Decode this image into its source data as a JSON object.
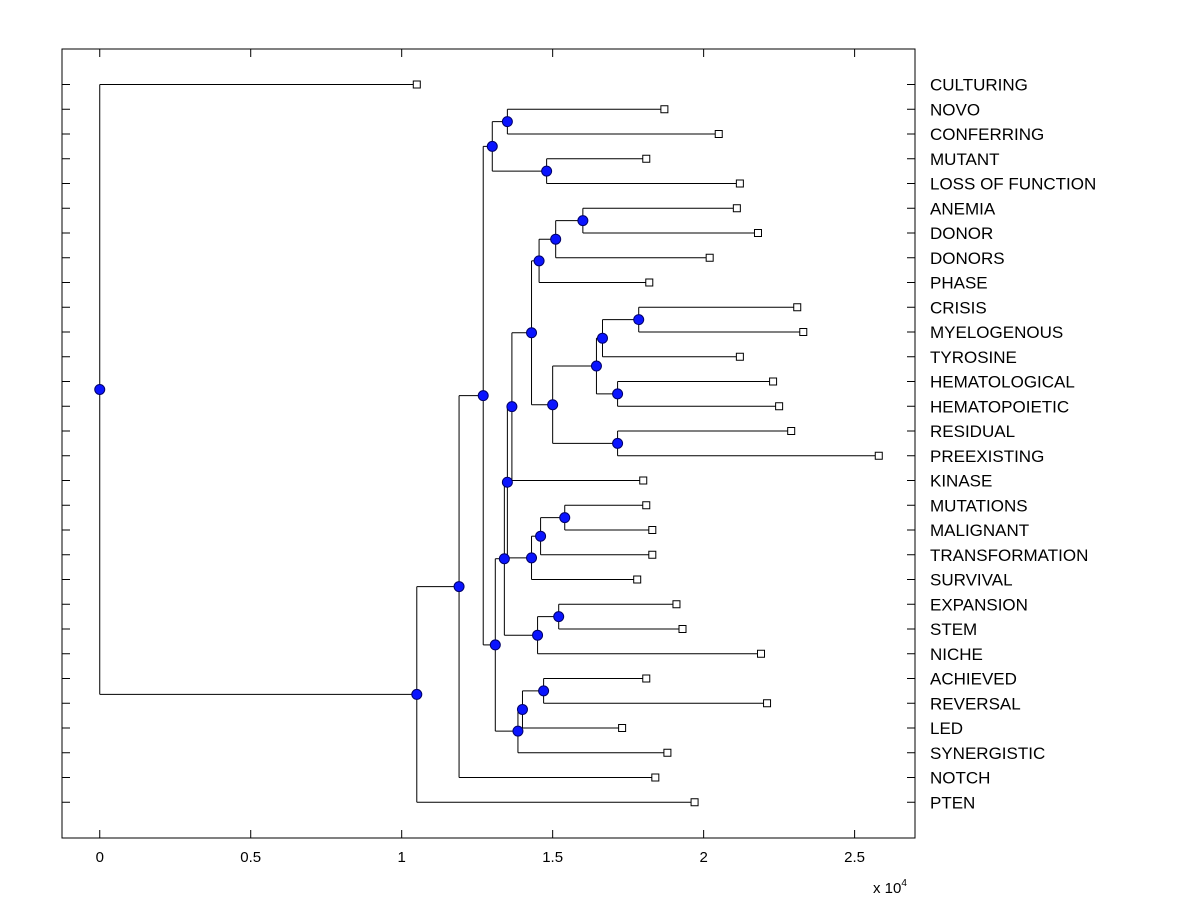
{
  "chart_data": {
    "type": "dendrogram",
    "title": "",
    "xlabel": "",
    "ylabel": "",
    "x_multiplier_label": "x 10",
    "x_multiplier_exponent": "4",
    "xlim": [
      -0.125,
      2.7
    ],
    "xticks": [
      0,
      0.5,
      1,
      1.5,
      2,
      2.5
    ],
    "xtick_labels": [
      "0",
      "0.5",
      "1",
      "1.5",
      "2",
      "2.5"
    ],
    "leaves": [
      {
        "label": "CULTURING",
        "x": 1.05
      },
      {
        "label": "NOVO",
        "x": 1.87
      },
      {
        "label": "CONFERRING",
        "x": 2.05
      },
      {
        "label": "MUTANT",
        "x": 1.81
      },
      {
        "label": "LOSS OF FUNCTION",
        "x": 2.12
      },
      {
        "label": "ANEMIA",
        "x": 2.11
      },
      {
        "label": "DONOR",
        "x": 2.18
      },
      {
        "label": "DONORS",
        "x": 2.02
      },
      {
        "label": "PHASE",
        "x": 1.82
      },
      {
        "label": "CRISIS",
        "x": 2.31
      },
      {
        "label": "MYELOGENOUS",
        "x": 2.33
      },
      {
        "label": "TYROSINE",
        "x": 2.12
      },
      {
        "label": "HEMATOLOGICAL",
        "x": 2.23
      },
      {
        "label": "HEMATOPOIETIC",
        "x": 2.25
      },
      {
        "label": "RESIDUAL",
        "x": 2.29
      },
      {
        "label": "PREEXISTING",
        "x": 2.58
      },
      {
        "label": "KINASE",
        "x": 1.8
      },
      {
        "label": "MUTATIONS",
        "x": 1.81
      },
      {
        "label": "MALIGNANT",
        "x": 1.83
      },
      {
        "label": "TRANSFORMATION",
        "x": 1.83
      },
      {
        "label": "SURVIVAL",
        "x": 1.78
      },
      {
        "label": "EXPANSION",
        "x": 1.91
      },
      {
        "label": "STEM",
        "x": 1.93
      },
      {
        "label": "NICHE",
        "x": 2.19
      },
      {
        "label": "ACHIEVED",
        "x": 1.81
      },
      {
        "label": "REVERSAL",
        "x": 2.21
      },
      {
        "label": "LED",
        "x": 1.73
      },
      {
        "label": "SYNERGISTIC",
        "x": 1.88
      },
      {
        "label": "NOTCH",
        "x": 1.84
      },
      {
        "label": "PTEN",
        "x": 1.97
      }
    ],
    "internal_nodes": [
      {
        "id": "n1",
        "x": 1.35,
        "children": [
          "NOVO",
          "CONFERRING"
        ]
      },
      {
        "id": "n2",
        "x": 1.48,
        "children": [
          "MUTANT",
          "LOSS OF FUNCTION"
        ]
      },
      {
        "id": "n3",
        "x": 1.3,
        "children": [
          "n1",
          "n2"
        ]
      },
      {
        "id": "n4",
        "x": 1.6,
        "children": [
          "ANEMIA",
          "DONOR"
        ]
      },
      {
        "id": "n5",
        "x": 1.51,
        "children": [
          "n4",
          "DONORS"
        ]
      },
      {
        "id": "n6",
        "x": 1.455,
        "children": [
          "n5",
          "PHASE"
        ]
      },
      {
        "id": "n7",
        "x": 1.785,
        "children": [
          "CRISIS",
          "MYELOGENOUS"
        ]
      },
      {
        "id": "n8",
        "x": 1.665,
        "children": [
          "n7",
          "TYROSINE"
        ]
      },
      {
        "id": "n9",
        "x": 1.715,
        "children": [
          "HEMATOLOGICAL",
          "HEMATOPOIETIC"
        ]
      },
      {
        "id": "n10",
        "x": 1.645,
        "children": [
          "n8",
          "n9"
        ]
      },
      {
        "id": "n11",
        "x": 1.715,
        "children": [
          "RESIDUAL",
          "PREEXISTING"
        ]
      },
      {
        "id": "n12",
        "x": 1.5,
        "children": [
          "n10",
          "n11"
        ]
      },
      {
        "id": "n13",
        "x": 1.43,
        "children": [
          "n6",
          "n12"
        ]
      },
      {
        "id": "n14",
        "x": 1.365,
        "children": [
          "n13",
          "KINASE"
        ]
      },
      {
        "id": "n15",
        "x": 1.54,
        "children": [
          "MUTATIONS",
          "MALIGNANT"
        ]
      },
      {
        "id": "n16",
        "x": 1.46,
        "children": [
          "n15",
          "TRANSFORMATION"
        ]
      },
      {
        "id": "n17",
        "x": 1.43,
        "children": [
          "n16",
          "SURVIVAL"
        ]
      },
      {
        "id": "n18",
        "x": 1.35,
        "children": [
          "n14",
          "n17"
        ]
      },
      {
        "id": "n19",
        "x": 1.52,
        "children": [
          "EXPANSION",
          "STEM"
        ]
      },
      {
        "id": "n20",
        "x": 1.45,
        "children": [
          "n19",
          "NICHE"
        ]
      },
      {
        "id": "n21",
        "x": 1.34,
        "children": [
          "n18",
          "n20"
        ]
      },
      {
        "id": "n22",
        "x": 1.47,
        "children": [
          "ACHIEVED",
          "REVERSAL"
        ]
      },
      {
        "id": "n23",
        "x": 1.4,
        "children": [
          "n22",
          "LED"
        ]
      },
      {
        "id": "n24",
        "x": 1.385,
        "children": [
          "n23",
          "SYNERGISTIC"
        ]
      },
      {
        "id": "n25",
        "x": 1.31,
        "children": [
          "n21",
          "n24"
        ]
      },
      {
        "id": "n26",
        "x": 1.27,
        "children": [
          "n3",
          "n25"
        ]
      },
      {
        "id": "n27",
        "x": 1.19,
        "children": [
          "n26",
          "NOTCH"
        ]
      },
      {
        "id": "n28",
        "x": 1.05,
        "children": [
          "n27",
          "PTEN"
        ]
      },
      {
        "id": "n29",
        "x": 0.0,
        "children": [
          "CULTURING",
          "n28"
        ]
      }
    ]
  }
}
